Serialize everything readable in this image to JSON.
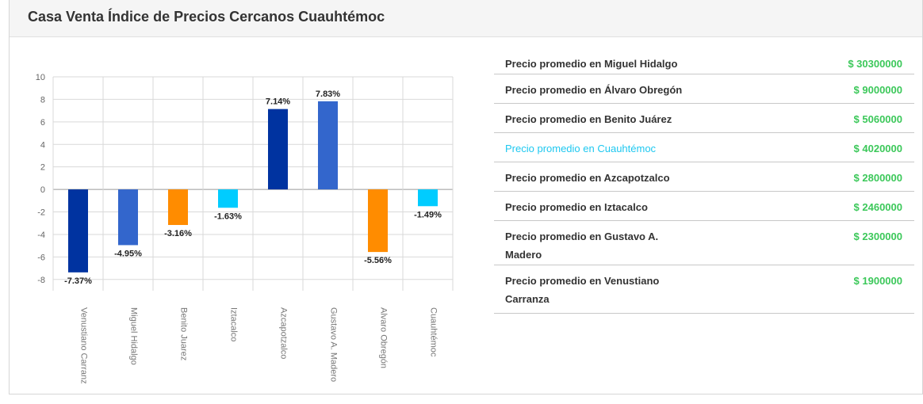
{
  "title": "Casa Venta Índice de Precios Cercanos Cuauhtémoc",
  "chart_data": {
    "type": "bar",
    "categories": [
      "Venustiano Carranz",
      "Miguel Hidalgo",
      "Benito Juarez",
      "Iztacalco",
      "Azcapotzalco",
      "Gustavo A. Madero",
      "Alvaro Obregón",
      "Cuauhtémoc"
    ],
    "values": [
      -7.37,
      -4.95,
      -3.16,
      -1.63,
      7.14,
      7.83,
      -5.56,
      -1.49
    ],
    "data_labels": [
      "-7.37%",
      "-4.95%",
      "-3.16%",
      "-1.63%",
      "7.14%",
      "7.83%",
      "-5.56%",
      "-1.49%"
    ],
    "colors": [
      "#0033a0",
      "#3366cc",
      "#ff8c00",
      "#00ccff",
      "#0033a0",
      "#3366cc",
      "#ff8c00",
      "#00ccff"
    ],
    "y_ticks": [
      10,
      8,
      6,
      4,
      2,
      0,
      -2,
      -4,
      -6,
      -8
    ],
    "ylim": [
      -9,
      10
    ],
    "grid": true
  },
  "price_list": {
    "items": [
      {
        "label": "Precio promedio en Miguel Hidalgo",
        "value": "$ 30300000",
        "highlight": false
      },
      {
        "label": "Precio promedio en Álvaro Obregón",
        "value": "$ 9000000",
        "highlight": false
      },
      {
        "label": "Precio promedio en Benito Juárez",
        "value": "$ 5060000",
        "highlight": false
      },
      {
        "label": "Precio promedio en Cuauhtémoc",
        "value": "$ 4020000",
        "highlight": true
      },
      {
        "label": "Precio promedio en Azcapotzalco",
        "value": "$ 2800000",
        "highlight": false
      },
      {
        "label": "Precio promedio en Iztacalco",
        "value": "$ 2460000",
        "highlight": false
      },
      {
        "label": "Precio promedio en Gustavo A. Madero",
        "value": "$ 2300000",
        "highlight": false
      },
      {
        "label": "Precio promedio en Venustiano Carranza",
        "value": "$ 1900000",
        "highlight": false
      }
    ]
  }
}
